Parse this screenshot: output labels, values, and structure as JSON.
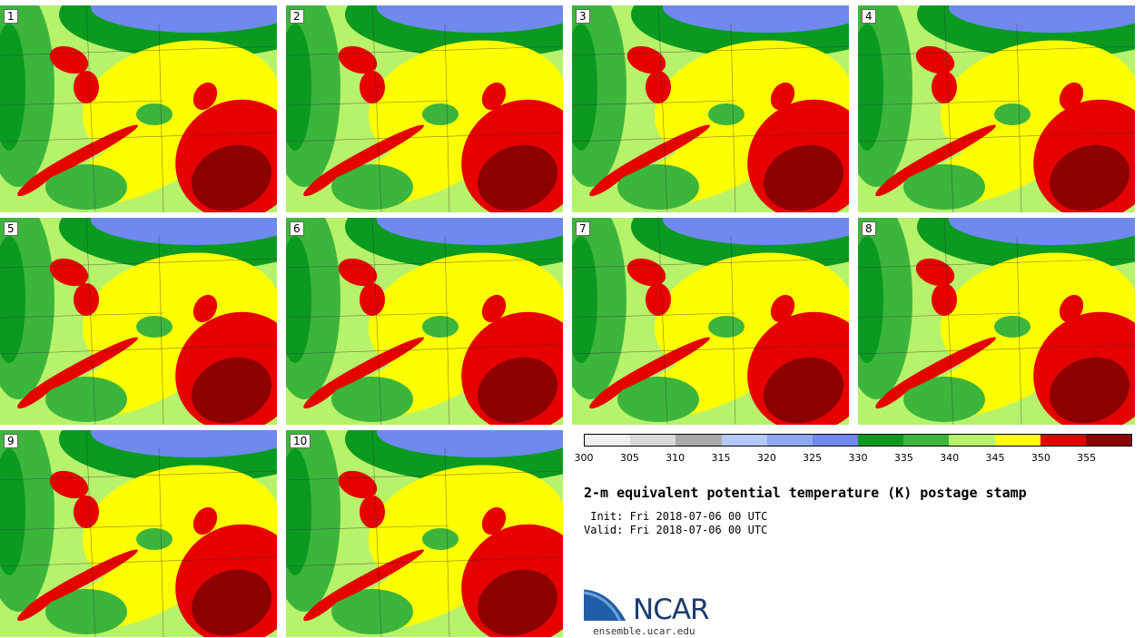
{
  "panels": [
    "1",
    "2",
    "3",
    "4",
    "5",
    "6",
    "7",
    "8",
    "9",
    "10"
  ],
  "colorbar": {
    "colors": [
      "#f0f0f0",
      "#d9d9d9",
      "#aaaaaa",
      "#b5c8f7",
      "#8fa8f2",
      "#6f89ee",
      "#0b9a20",
      "#3cb53c",
      "#b7f26b",
      "#ffff00",
      "#e60000",
      "#8c0000"
    ],
    "ticks": [
      "300",
      "305",
      "310",
      "315",
      "320",
      "325",
      "330",
      "335",
      "340",
      "345",
      "350",
      "355"
    ]
  },
  "title": "2-m equivalent potential temperature (K) postage stamp",
  "init": " Init: Fri 2018-07-06 00 UTC",
  "valid": "Valid: Fri 2018-07-06 00 UTC",
  "logo": {
    "text": "NCAR",
    "site": "ensemble.ucar.edu"
  }
}
